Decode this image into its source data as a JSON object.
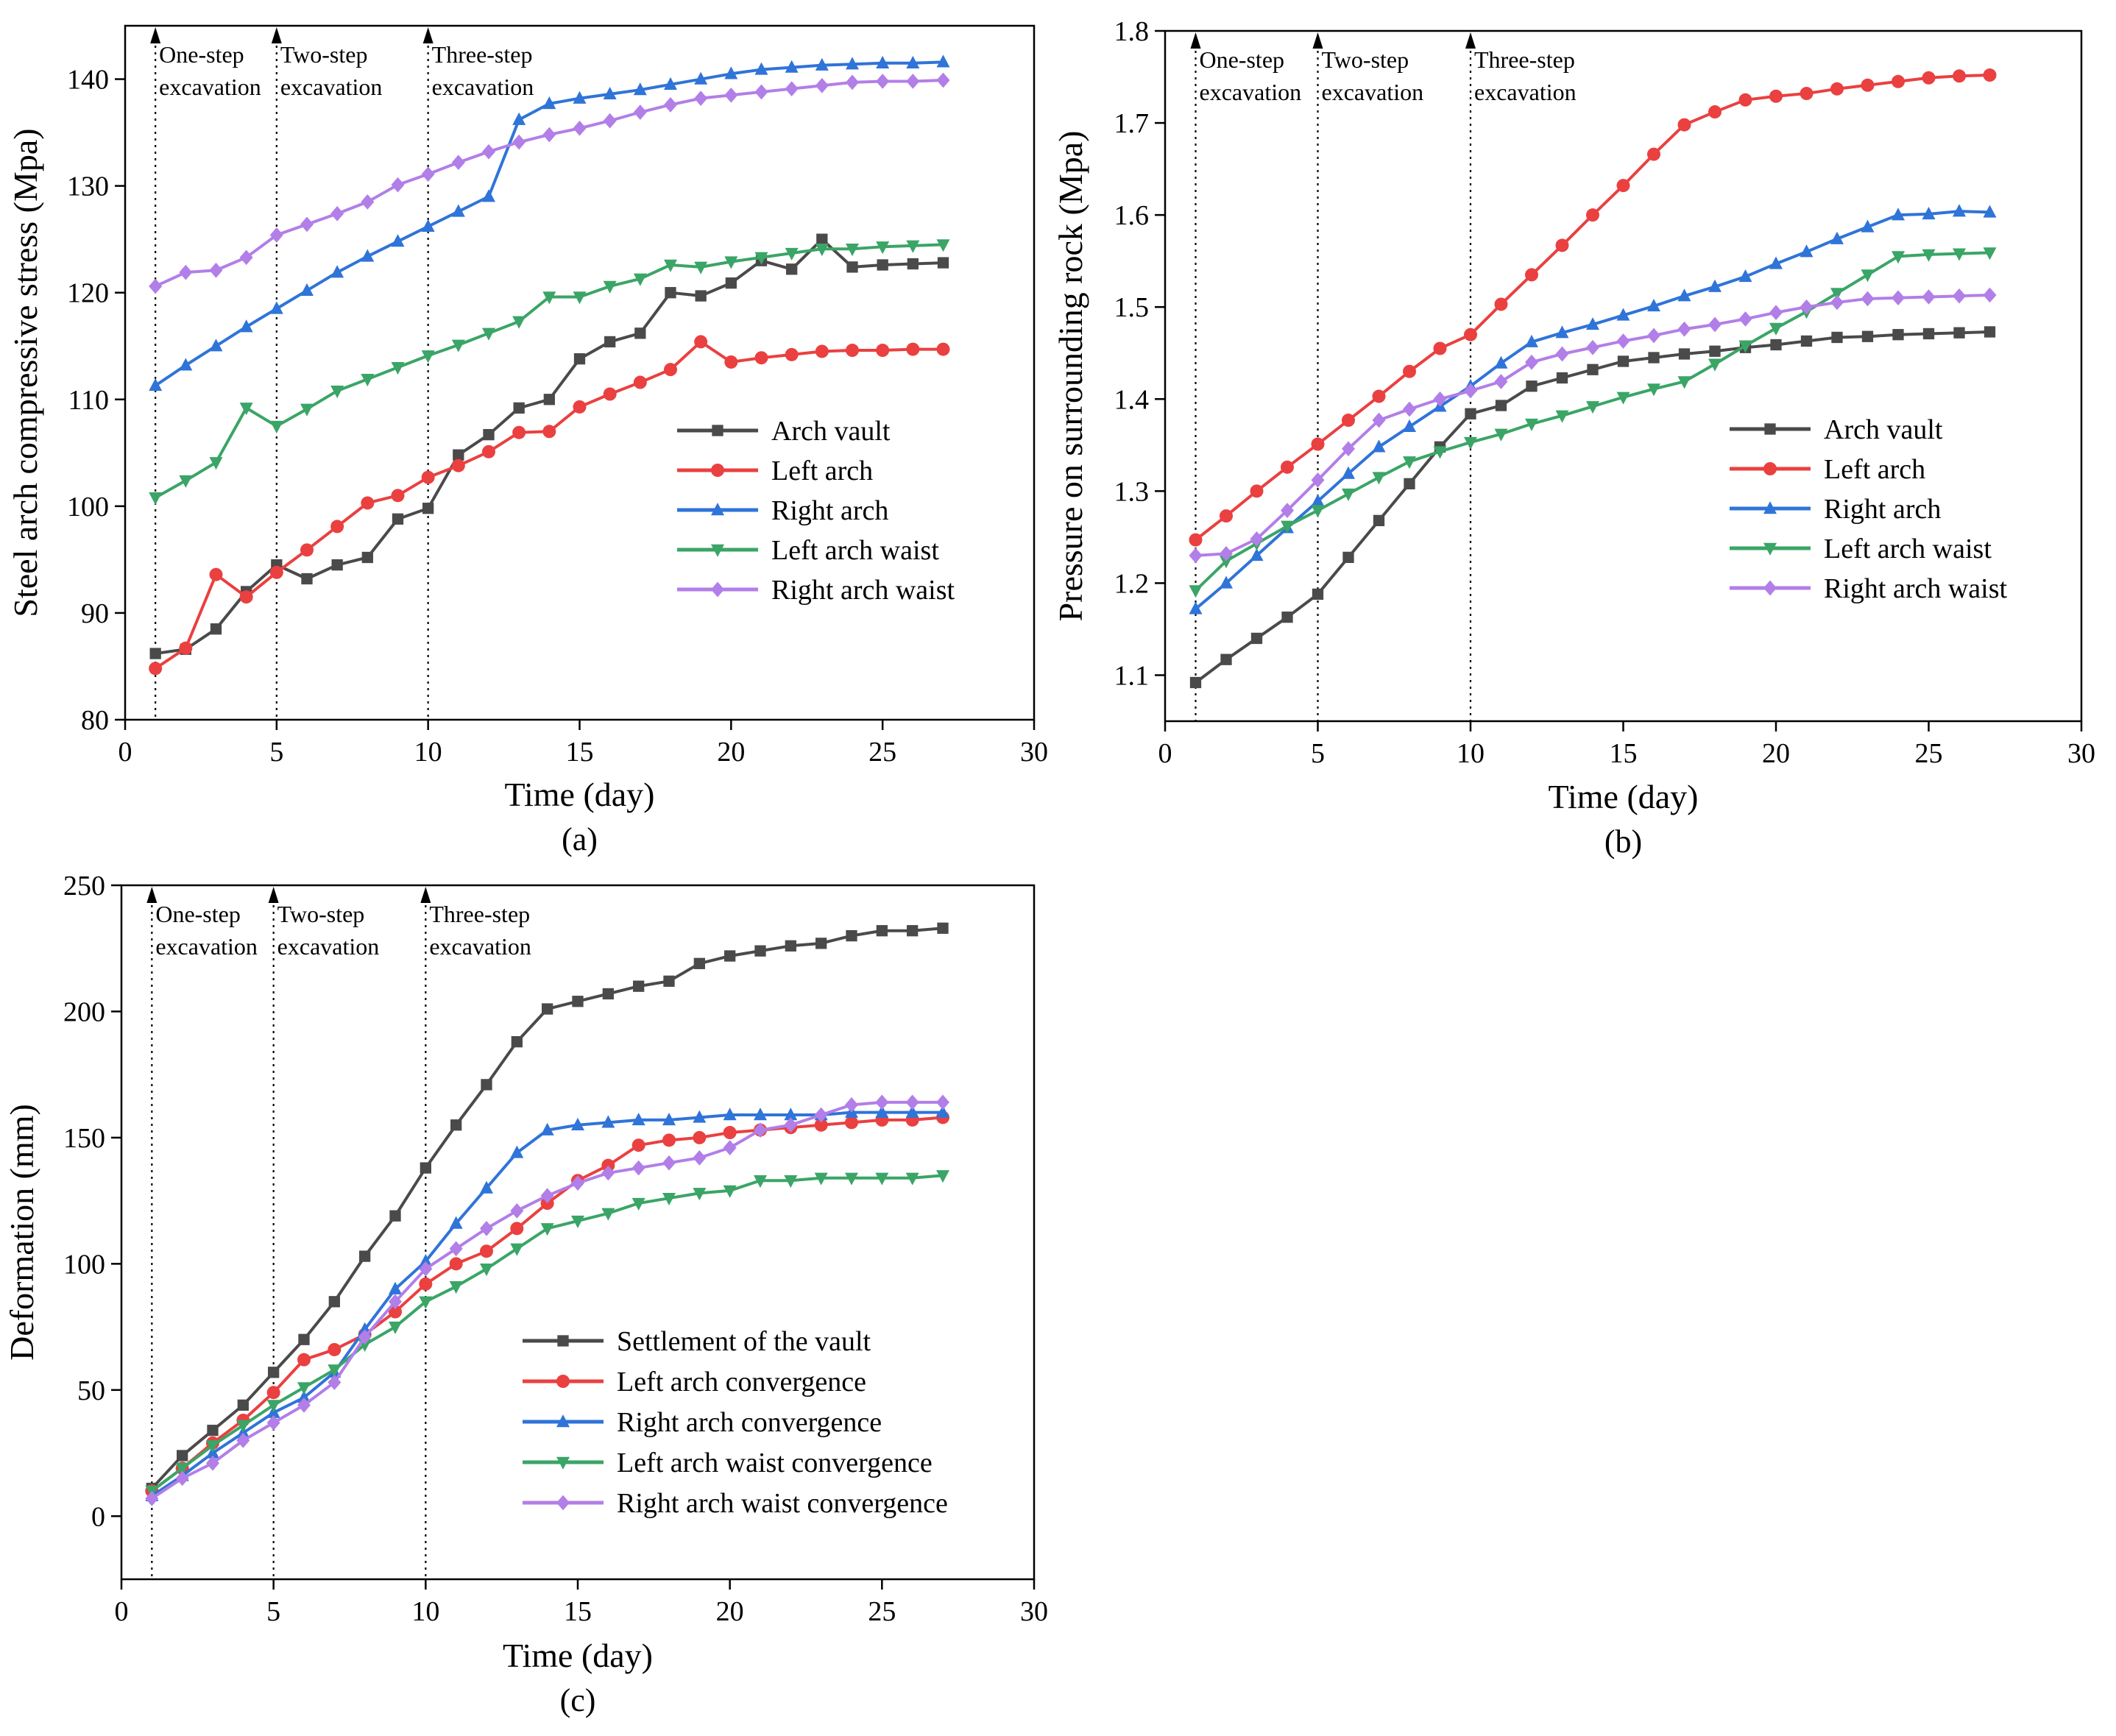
{
  "figure": {
    "colors": {
      "arch_vault": "#4a4a4a",
      "left_arch": "#ea4040",
      "right_arch": "#2f74d8",
      "left_arch_waist": "#3aa566",
      "right_arch_waist": "#b27ee8"
    }
  },
  "chart_data": [
    {
      "panel": "(a)",
      "type": "line",
      "xlabel": "Time (day)",
      "ylabel": "Steel arch compressive stress (Mpa)",
      "xlim": [
        0,
        30
      ],
      "ylim": [
        80,
        145
      ],
      "xticks": [
        0,
        5,
        10,
        15,
        20,
        25,
        30
      ],
      "yticks": [
        80,
        90,
        100,
        110,
        120,
        130,
        140
      ],
      "ytick_labels": [
        "80",
        "90",
        "100",
        "110",
        "120",
        "130",
        "140"
      ],
      "grid": false,
      "legend_position": "right-middle",
      "annotations": [
        {
          "x": 1,
          "lines": [
            "One-step",
            "excavation"
          ]
        },
        {
          "x": 5,
          "lines": [
            "Two-step",
            "excavation"
          ]
        },
        {
          "x": 10,
          "lines": [
            "Three-step",
            "excavation"
          ]
        }
      ],
      "x": [
        1,
        2,
        3,
        4,
        5,
        6,
        7,
        8,
        9,
        10,
        11,
        12,
        13,
        14,
        15,
        16,
        17,
        18,
        19,
        20,
        21,
        22,
        23,
        24,
        25,
        26,
        27
      ],
      "series": [
        {
          "name": "Arch vault",
          "color_key": "arch_vault",
          "marker": "square",
          "values": [
            86.2,
            86.6,
            88.5,
            92.0,
            94.5,
            93.2,
            94.5,
            95.2,
            98.8,
            99.8,
            104.8,
            106.7,
            109.2,
            110.0,
            113.8,
            115.4,
            116.2,
            120.0,
            119.7,
            120.9,
            123.0,
            122.2,
            125.0,
            122.4,
            122.6,
            122.7,
            122.8
          ]
        },
        {
          "name": "Left arch",
          "color_key": "left_arch",
          "marker": "circle",
          "values": [
            84.8,
            86.7,
            93.6,
            91.5,
            93.8,
            95.9,
            98.1,
            100.3,
            101.0,
            102.7,
            103.8,
            105.1,
            106.9,
            107.0,
            109.3,
            110.5,
            111.6,
            112.8,
            115.4,
            113.5,
            113.9,
            114.2,
            114.5,
            114.6,
            114.6,
            114.7,
            114.7
          ]
        },
        {
          "name": "Right arch",
          "color_key": "right_arch",
          "marker": "triangle-up",
          "values": [
            111.3,
            113.2,
            115.0,
            116.8,
            118.5,
            120.2,
            121.9,
            123.4,
            124.8,
            126.2,
            127.6,
            129.0,
            136.2,
            137.7,
            138.2,
            138.6,
            139.0,
            139.5,
            140.0,
            140.5,
            140.9,
            141.1,
            141.3,
            141.4,
            141.5,
            141.5,
            141.6
          ]
        },
        {
          "name": "Left arch waist",
          "color_key": "left_arch_waist",
          "marker": "triangle-down",
          "values": [
            100.8,
            102.4,
            104.1,
            109.2,
            107.5,
            109.1,
            110.8,
            111.9,
            113.0,
            114.1,
            115.1,
            116.2,
            117.3,
            119.6,
            119.6,
            120.6,
            121.3,
            122.6,
            122.4,
            122.9,
            123.3,
            123.7,
            124.1,
            124.1,
            124.3,
            124.4,
            124.5
          ]
        },
        {
          "name": "Right arch waist",
          "color_key": "right_arch_waist",
          "marker": "diamond",
          "values": [
            120.6,
            121.9,
            122.1,
            123.3,
            125.4,
            126.4,
            127.4,
            128.5,
            130.1,
            131.1,
            132.2,
            133.2,
            134.1,
            134.8,
            135.4,
            136.1,
            136.9,
            137.6,
            138.2,
            138.5,
            138.8,
            139.1,
            139.4,
            139.7,
            139.8,
            139.8,
            139.9
          ]
        }
      ]
    },
    {
      "panel": "(b)",
      "type": "line",
      "xlabel": "Time (day)",
      "ylabel": "Pressure on surrounding rock (Mpa)",
      "xlim": [
        0,
        30
      ],
      "ylim": [
        1.05,
        1.8
      ],
      "xticks": [
        0,
        5,
        10,
        15,
        20,
        25,
        30
      ],
      "yticks": [
        1.1,
        1.2,
        1.3,
        1.4,
        1.5,
        1.6,
        1.7,
        1.8
      ],
      "ytick_labels": [
        "1.1",
        "1.2",
        "1.3",
        "1.4",
        "1.5",
        "1.6",
        "1.7",
        "1.8"
      ],
      "grid": false,
      "legend_position": "right-middle",
      "annotations": [
        {
          "x": 1,
          "lines": [
            "One-step",
            "excavation"
          ]
        },
        {
          "x": 5,
          "lines": [
            "Two-step",
            "excavation"
          ]
        },
        {
          "x": 10,
          "lines": [
            "Three-step",
            "excavation"
          ]
        }
      ],
      "x": [
        1,
        2,
        3,
        4,
        5,
        6,
        7,
        8,
        9,
        10,
        11,
        12,
        13,
        14,
        15,
        16,
        17,
        18,
        19,
        20,
        21,
        22,
        23,
        24,
        25,
        26,
        27
      ],
      "series": [
        {
          "name": "Arch vault",
          "color_key": "arch_vault",
          "marker": "square",
          "values": [
            1.092,
            1.117,
            1.14,
            1.163,
            1.188,
            1.228,
            1.268,
            1.308,
            1.348,
            1.384,
            1.393,
            1.414,
            1.423,
            1.432,
            1.441,
            1.445,
            1.449,
            1.452,
            1.456,
            1.459,
            1.463,
            1.467,
            1.468,
            1.47,
            1.471,
            1.472,
            1.473
          ]
        },
        {
          "name": "Left arch",
          "color_key": "left_arch",
          "marker": "circle",
          "values": [
            1.247,
            1.273,
            1.3,
            1.326,
            1.351,
            1.377,
            1.403,
            1.43,
            1.455,
            1.47,
            1.503,
            1.535,
            1.567,
            1.6,
            1.632,
            1.666,
            1.698,
            1.712,
            1.725,
            1.729,
            1.732,
            1.737,
            1.741,
            1.745,
            1.749,
            1.751,
            1.752
          ]
        },
        {
          "name": "Right arch",
          "color_key": "right_arch",
          "marker": "triangle-up",
          "values": [
            1.172,
            1.2,
            1.23,
            1.26,
            1.289,
            1.319,
            1.348,
            1.37,
            1.392,
            1.414,
            1.439,
            1.462,
            1.472,
            1.481,
            1.491,
            1.501,
            1.512,
            1.522,
            1.533,
            1.547,
            1.56,
            1.574,
            1.587,
            1.6,
            1.601,
            1.604,
            1.603
          ]
        },
        {
          "name": "Left arch waist",
          "color_key": "left_arch_waist",
          "marker": "triangle-down",
          "values": [
            1.192,
            1.224,
            1.243,
            1.262,
            1.279,
            1.297,
            1.315,
            1.332,
            1.343,
            1.353,
            1.362,
            1.373,
            1.382,
            1.392,
            1.402,
            1.411,
            1.419,
            1.438,
            1.458,
            1.477,
            1.495,
            1.515,
            1.535,
            1.555,
            1.557,
            1.558,
            1.559
          ]
        },
        {
          "name": "Right arch waist",
          "color_key": "right_arch_waist",
          "marker": "diamond",
          "values": [
            1.23,
            1.232,
            1.248,
            1.279,
            1.312,
            1.346,
            1.377,
            1.389,
            1.4,
            1.409,
            1.419,
            1.44,
            1.449,
            1.456,
            1.463,
            1.469,
            1.476,
            1.481,
            1.487,
            1.494,
            1.5,
            1.505,
            1.509,
            1.51,
            1.511,
            1.512,
            1.513
          ]
        }
      ]
    },
    {
      "panel": "(c)",
      "type": "line",
      "xlabel": "Time (day)",
      "ylabel": "Deformation (mm)",
      "xlim": [
        0,
        30
      ],
      "ylim": [
        -25,
        250
      ],
      "xticks": [
        0,
        5,
        10,
        15,
        20,
        25,
        30
      ],
      "yticks": [
        0,
        50,
        100,
        150,
        200,
        250
      ],
      "ytick_labels": [
        "0",
        "50",
        "100",
        "150",
        "200",
        "250"
      ],
      "grid": false,
      "legend_position": "bottom-right",
      "annotations": [
        {
          "x": 1,
          "lines": [
            "One-step",
            "excavation"
          ]
        },
        {
          "x": 5,
          "lines": [
            "Two-step",
            "excavation"
          ]
        },
        {
          "x": 10,
          "lines": [
            "Three-step",
            "excavation"
          ]
        }
      ],
      "x": [
        1,
        2,
        3,
        4,
        5,
        6,
        7,
        8,
        9,
        10,
        11,
        12,
        13,
        14,
        15,
        16,
        17,
        18,
        19,
        20,
        21,
        22,
        23,
        24,
        25,
        26,
        27
      ],
      "series": [
        {
          "name": "Settlement of the vault",
          "color_key": "arch_vault",
          "marker": "square",
          "values": [
            11,
            24,
            34,
            44,
            57,
            70,
            85,
            103,
            119,
            138,
            155,
            171,
            188,
            201,
            204,
            207,
            210,
            212,
            219,
            222,
            224,
            226,
            227,
            230,
            232,
            232,
            233
          ]
        },
        {
          "name": "Left arch convergence",
          "color_key": "left_arch",
          "marker": "circle",
          "values": [
            10,
            19,
            29,
            38,
            49,
            62,
            66,
            72,
            81,
            92,
            100,
            105,
            114,
            124,
            133,
            139,
            147,
            149,
            150,
            152,
            153,
            154,
            155,
            156,
            157,
            157,
            158
          ]
        },
        {
          "name": "Right arch convergence",
          "color_key": "right_arch",
          "marker": "triangle-up",
          "values": [
            8,
            16,
            25,
            33,
            41,
            47,
            57,
            74,
            90,
            101,
            116,
            130,
            144,
            153,
            155,
            156,
            157,
            157,
            158,
            159,
            159,
            159,
            159,
            160,
            160,
            160,
            160
          ]
        },
        {
          "name": "Left arch waist convergence",
          "color_key": "left_arch_waist",
          "marker": "triangle-down",
          "values": [
            10,
            19,
            28,
            36,
            44,
            51,
            58,
            68,
            75,
            85,
            91,
            98,
            106,
            114,
            117,
            120,
            124,
            126,
            128,
            129,
            133,
            133,
            134,
            134,
            134,
            134,
            135
          ]
        },
        {
          "name": "Right arch waist convergence",
          "color_key": "right_arch_waist",
          "marker": "diamond",
          "values": [
            7,
            15,
            21,
            30,
            37,
            44,
            53,
            71,
            85,
            98,
            106,
            114,
            121,
            127,
            132,
            136,
            138,
            140,
            142,
            146,
            153,
            155,
            159,
            163,
            164,
            164,
            164
          ]
        }
      ]
    }
  ]
}
